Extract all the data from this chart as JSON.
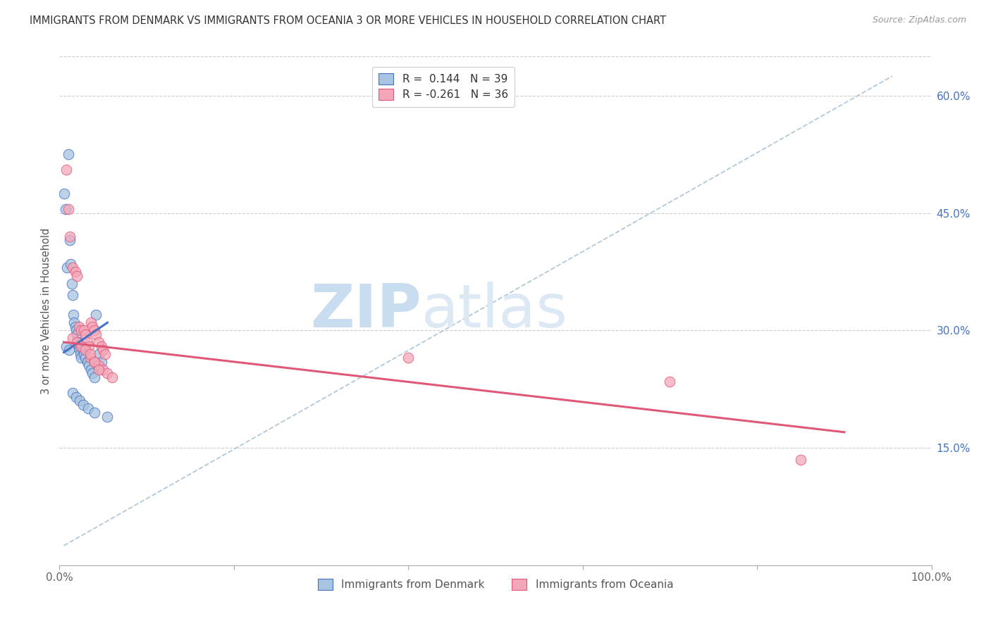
{
  "title": "IMMIGRANTS FROM DENMARK VS IMMIGRANTS FROM OCEANIA 3 OR MORE VEHICLES IN HOUSEHOLD CORRELATION CHART",
  "source": "Source: ZipAtlas.com",
  "ylabel": "3 or more Vehicles in Household",
  "xlim": [
    0.0,
    1.0
  ],
  "ylim": [
    0.0,
    0.65
  ],
  "xticks": [
    0.0,
    0.2,
    0.4,
    0.6,
    0.8,
    1.0
  ],
  "xtick_labels": [
    "0.0%",
    "",
    "",
    "",
    "",
    "100.0%"
  ],
  "ytick_labels_right": [
    "15.0%",
    "30.0%",
    "45.0%",
    "60.0%"
  ],
  "yticks_right": [
    0.15,
    0.3,
    0.45,
    0.6
  ],
  "legend_r1": "R =  0.144   N = 39",
  "legend_r2": "R = -0.261   N = 36",
  "denmark_color": "#a8c4e0",
  "oceania_color": "#f4a7b9",
  "denmark_line_color": "#4472c4",
  "oceania_line_color": "#e05878",
  "dashed_line_color": "#b0c8d8",
  "background_color": "#ffffff",
  "watermark_zip": "ZIP",
  "watermark_atlas": "atlas",
  "denmark_scatter_x": [
    0.005,
    0.007,
    0.009,
    0.01,
    0.012,
    0.013,
    0.014,
    0.015,
    0.016,
    0.017,
    0.018,
    0.019,
    0.02,
    0.021,
    0.022,
    0.023,
    0.024,
    0.025,
    0.026,
    0.027,
    0.028,
    0.03,
    0.032,
    0.034,
    0.036,
    0.038,
    0.04,
    0.042,
    0.045,
    0.048,
    0.008,
    0.011,
    0.015,
    0.019,
    0.023,
    0.027,
    0.033,
    0.04,
    0.055
  ],
  "denmark_scatter_y": [
    0.475,
    0.455,
    0.38,
    0.525,
    0.415,
    0.385,
    0.36,
    0.345,
    0.32,
    0.31,
    0.305,
    0.3,
    0.295,
    0.285,
    0.28,
    0.275,
    0.27,
    0.265,
    0.28,
    0.275,
    0.27,
    0.265,
    0.26,
    0.255,
    0.25,
    0.245,
    0.24,
    0.32,
    0.27,
    0.26,
    0.28,
    0.275,
    0.22,
    0.215,
    0.21,
    0.205,
    0.2,
    0.195,
    0.19
  ],
  "oceania_scatter_x": [
    0.008,
    0.01,
    0.012,
    0.015,
    0.018,
    0.02,
    0.022,
    0.025,
    0.028,
    0.03,
    0.032,
    0.034,
    0.036,
    0.038,
    0.04,
    0.042,
    0.045,
    0.048,
    0.05,
    0.052,
    0.015,
    0.02,
    0.025,
    0.03,
    0.035,
    0.04,
    0.045,
    0.05,
    0.055,
    0.06,
    0.4,
    0.7,
    0.85,
    0.035,
    0.04,
    0.045
  ],
  "oceania_scatter_y": [
    0.505,
    0.455,
    0.42,
    0.38,
    0.375,
    0.37,
    0.305,
    0.3,
    0.3,
    0.295,
    0.285,
    0.28,
    0.31,
    0.305,
    0.3,
    0.295,
    0.285,
    0.28,
    0.275,
    0.27,
    0.29,
    0.285,
    0.28,
    0.275,
    0.265,
    0.26,
    0.255,
    0.25,
    0.245,
    0.24,
    0.265,
    0.235,
    0.135,
    0.27,
    0.26,
    0.25
  ],
  "denmark_trend_x": [
    0.005,
    0.055
  ],
  "denmark_trend_y": [
    0.272,
    0.31
  ],
  "oceania_trend_x": [
    0.005,
    0.9
  ],
  "oceania_trend_y": [
    0.285,
    0.17
  ],
  "dashed_trend_x": [
    0.005,
    0.955
  ],
  "dashed_trend_y": [
    0.025,
    0.625
  ]
}
